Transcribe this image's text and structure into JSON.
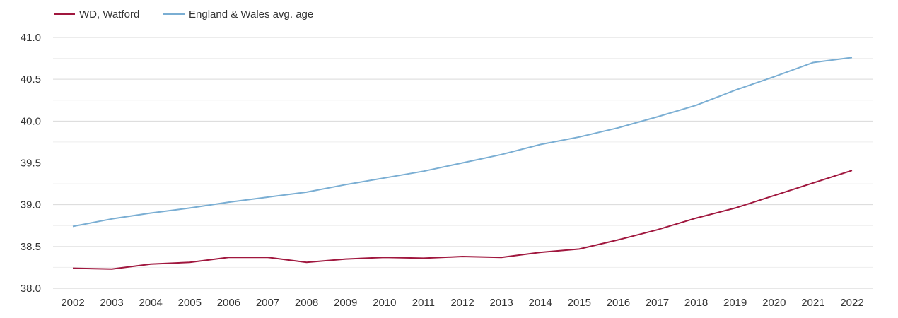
{
  "chart_data": {
    "type": "line",
    "title": "",
    "xlabel": "",
    "ylabel": "",
    "x": [
      "2002",
      "2003",
      "2004",
      "2005",
      "2006",
      "2007",
      "2008",
      "2009",
      "2010",
      "2011",
      "2012",
      "2013",
      "2014",
      "2015",
      "2016",
      "2017",
      "2018",
      "2019",
      "2020",
      "2021",
      "2022"
    ],
    "ylim": [
      38.0,
      41.0
    ],
    "yticks": [
      "38.0",
      "38.5",
      "39.0",
      "39.5",
      "40.0",
      "40.5",
      "41.0"
    ],
    "grid": true,
    "legend_position": "top-left",
    "series": [
      {
        "name": "WD, Watford",
        "color": "#a0173e",
        "values": [
          38.24,
          38.23,
          38.29,
          38.31,
          38.37,
          38.37,
          38.31,
          38.35,
          38.37,
          38.36,
          38.38,
          38.37,
          38.43,
          38.47,
          38.58,
          38.7,
          38.84,
          38.96,
          39.11,
          39.26,
          39.41
        ]
      },
      {
        "name": "England & Wales avg. age",
        "color": "#7aaed3",
        "values": [
          38.74,
          38.83,
          38.9,
          38.96,
          39.03,
          39.09,
          39.15,
          39.24,
          39.32,
          39.4,
          39.5,
          39.6,
          39.72,
          39.81,
          39.92,
          40.05,
          40.19,
          40.37,
          40.53,
          40.7,
          40.76
        ]
      }
    ]
  }
}
